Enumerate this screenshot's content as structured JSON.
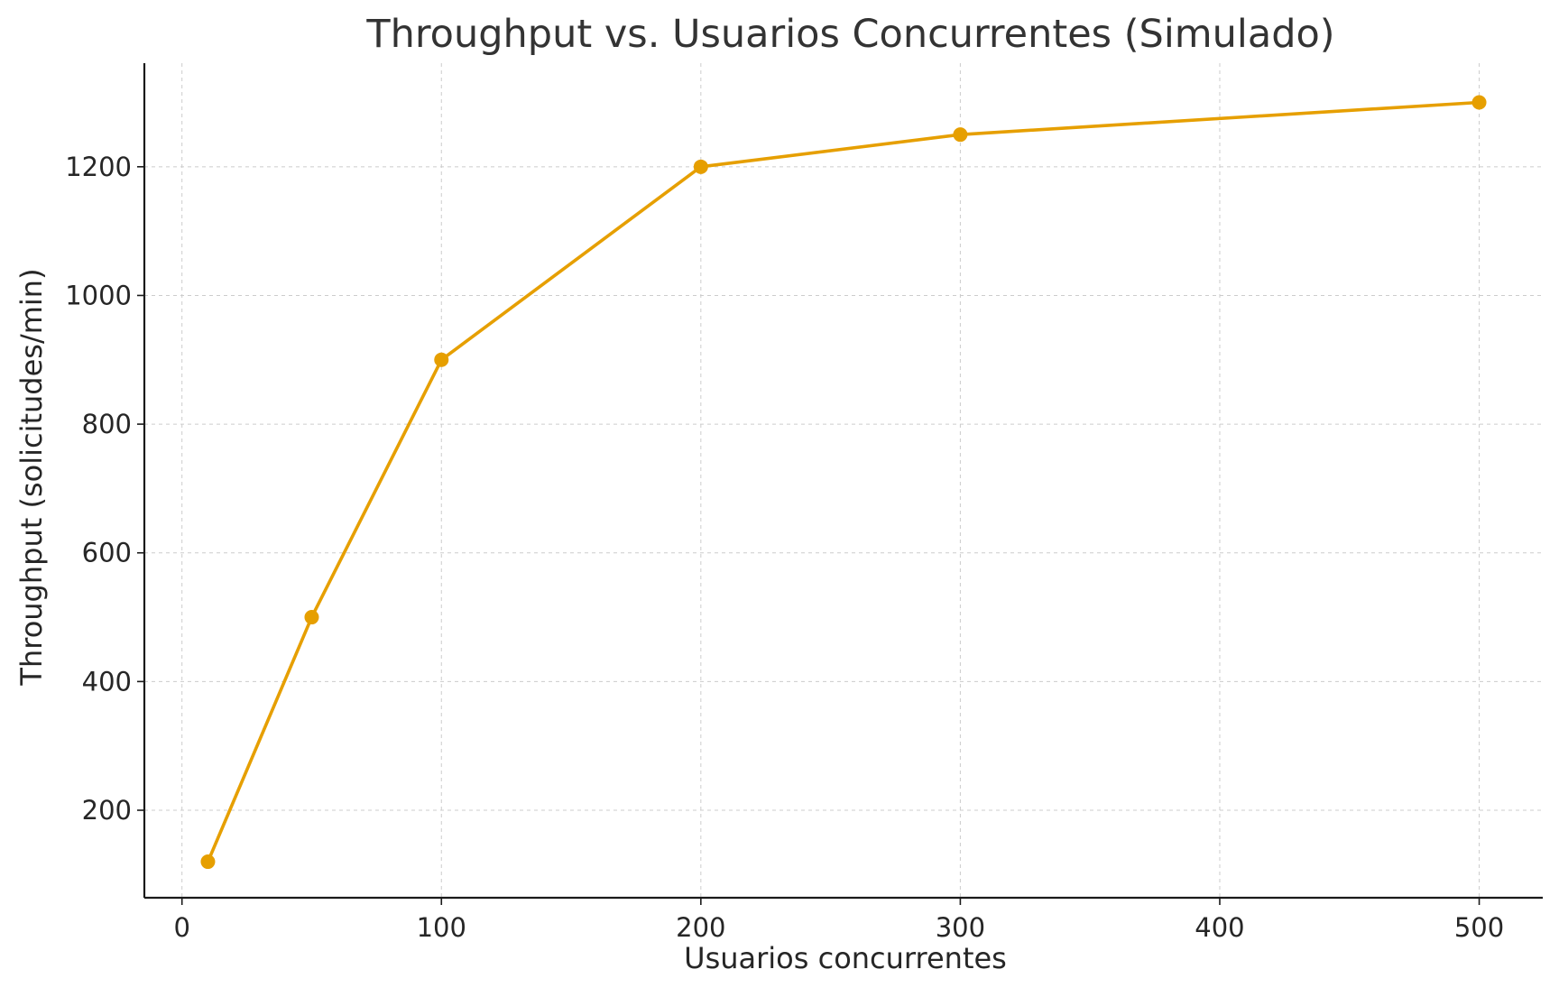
{
  "chart_data": {
    "type": "line",
    "title": "Throughput vs. Usuarios Concurrentes (Simulado)",
    "xlabel": "Usuarios concurrentes",
    "ylabel": "Throughput (solicitudes/min)",
    "xlim": [
      -14.5,
      524.5
    ],
    "ylim": [
      64,
      1361
    ],
    "x_ticks": [
      0,
      100,
      200,
      300,
      400,
      500
    ],
    "y_ticks": [
      200,
      400,
      600,
      800,
      1000,
      1200
    ],
    "grid": true,
    "series": [
      {
        "color": "#E69F00",
        "marker": "circle",
        "points": [
          {
            "x": 10,
            "y": 120
          },
          {
            "x": 50,
            "y": 500
          },
          {
            "x": 100,
            "y": 900
          },
          {
            "x": 200,
            "y": 1200
          },
          {
            "x": 300,
            "y": 1250
          },
          {
            "x": 500,
            "y": 1300
          }
        ]
      }
    ]
  }
}
